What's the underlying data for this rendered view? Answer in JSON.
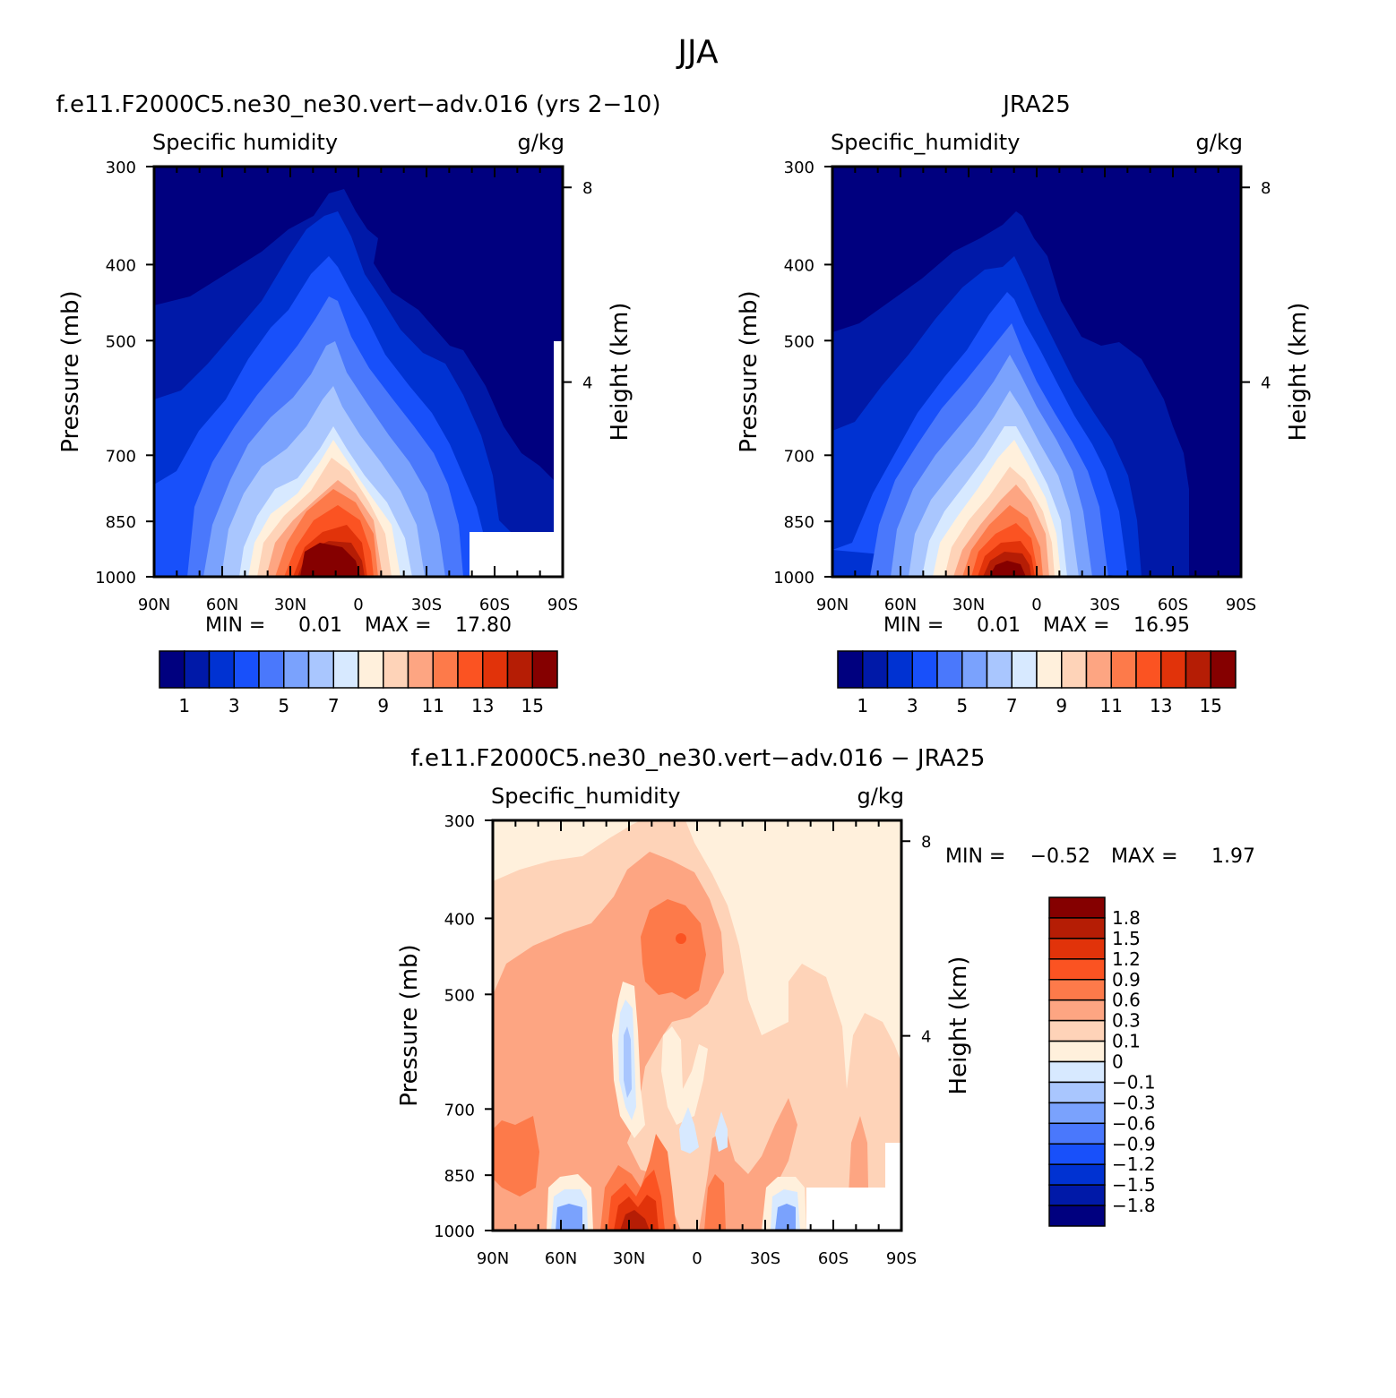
{
  "figure": {
    "title": "JJA",
    "colors": {
      "main_scale": [
        "#00007f",
        "#0019a8",
        "#0032d2",
        "#1850fa",
        "#4a78fc",
        "#7aa2fd",
        "#a9c6fe",
        "#d7e9ff",
        "#fff0dc",
        "#fed3b8",
        "#fda582",
        "#fd7a4a",
        "#fb5322",
        "#e1330a",
        "#b51d05",
        "#850000"
      ],
      "diff_scale": [
        "#00007f",
        "#0019a8",
        "#0032d2",
        "#1850fa",
        "#4a78fc",
        "#7aa2fd",
        "#a9c6fe",
        "#d7e9ff",
        "#fff0dc",
        "#fed3b8",
        "#fda582",
        "#fd7a4a",
        "#fb5322",
        "#e1330a",
        "#b51d05",
        "#850000"
      ]
    }
  },
  "chart_data": [
    {
      "type": "heatmap",
      "title": "f.e11.F2000C5.ne30_ne30.vert−adv.016 (yrs 2−10)",
      "left_label": "Specific humidity",
      "right_label": "g/kg",
      "ylabel": "Pressure (mb)",
      "y2label": "Height (km)",
      "ylim": [
        1000,
        300
      ],
      "yticks": [
        "300",
        "400",
        "500",
        "700",
        "850",
        "1000"
      ],
      "y2ticks": [
        "8",
        "4"
      ],
      "xticks": [
        "90N",
        "60N",
        "30N",
        "0",
        "30S",
        "60S",
        "90S"
      ],
      "min_label": "MIN =",
      "min": "0.01",
      "max_label": "MAX =",
      "max": "17.80",
      "peak": {
        "latitude": 10,
        "value": 17.8
      },
      "colorbar_labels": [
        "1",
        "3",
        "5",
        "7",
        "9",
        "11",
        "13",
        "15"
      ]
    },
    {
      "type": "heatmap",
      "title": "JRA25",
      "left_label": "Specific_humidity",
      "right_label": "g/kg",
      "ylabel": "Pressure (mb)",
      "y2label": "Height (km)",
      "ylim": [
        1000,
        300
      ],
      "yticks": [
        "300",
        "400",
        "500",
        "700",
        "850",
        "1000"
      ],
      "y2ticks": [
        "8",
        "4"
      ],
      "xticks": [
        "90N",
        "60N",
        "30N",
        "0",
        "30S",
        "60S",
        "90S"
      ],
      "min_label": "MIN =",
      "min": "0.01",
      "max_label": "MAX =",
      "max": "16.95",
      "peak": {
        "latitude": 8,
        "value": 16.95
      },
      "colorbar_labels": [
        "1",
        "3",
        "5",
        "7",
        "9",
        "11",
        "13",
        "15"
      ]
    },
    {
      "type": "heatmap",
      "title": "f.e11.F2000C5.ne30_ne30.vert−adv.016 − JRA25",
      "left_label": "Specific_humidity",
      "right_label": "g/kg",
      "ylabel": "Pressure (mb)",
      "y2label": "Height (km)",
      "ylim": [
        1000,
        300
      ],
      "yticks": [
        "300",
        "400",
        "500",
        "700",
        "850",
        "1000"
      ],
      "y2ticks": [
        "8",
        "4"
      ],
      "xticks": [
        "90N",
        "60N",
        "30N",
        "0",
        "30S",
        "60S",
        "90S"
      ],
      "min_label": "MIN =",
      "min": "−0.52",
      "max_label": "MAX =",
      "max": "1.97",
      "colorbar_labels": [
        "1.8",
        "1.5",
        "1.2",
        "0.9",
        "0.6",
        "0.3",
        "0.1",
        "0",
        "−0.1",
        "−0.3",
        "−0.6",
        "−0.9",
        "−1.2",
        "−1.5",
        "−1.8"
      ]
    }
  ]
}
